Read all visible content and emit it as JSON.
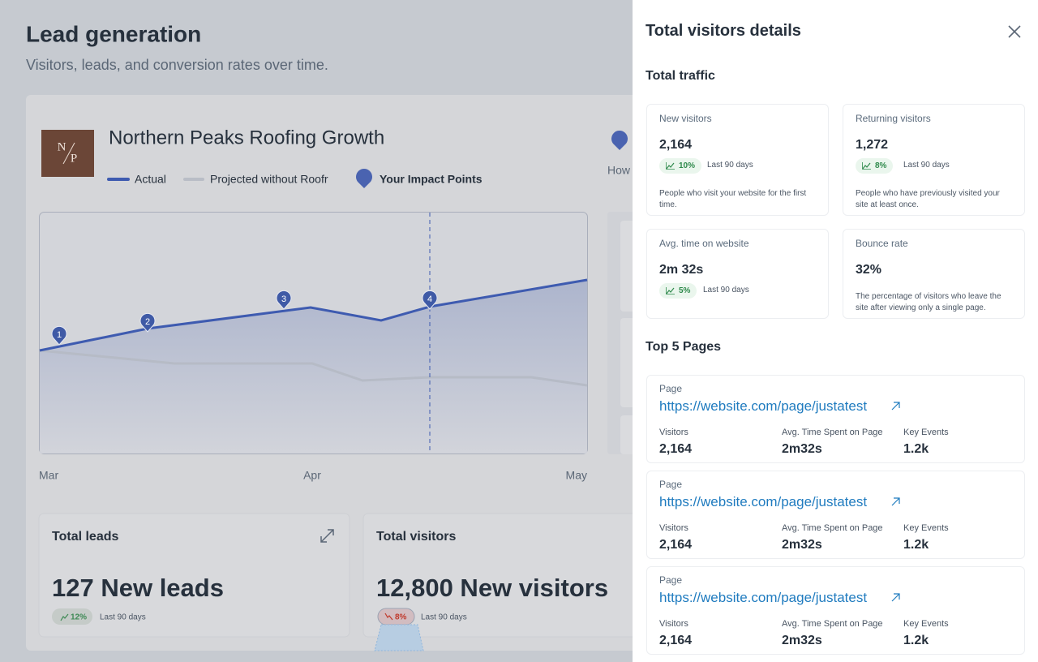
{
  "header": {
    "title": "Lead generation",
    "subtitle": "Visitors, leads, and conversion rates over time."
  },
  "chart": {
    "logo": [
      "N",
      "P"
    ],
    "title": "Northern Peaks Roofing Growth",
    "legend": [
      "Actual",
      "Projected without Roofr",
      "Your Impact Points"
    ],
    "impact_points": [
      "1",
      "2",
      "3",
      "4"
    ],
    "x_labels": [
      "Mar",
      "Apr",
      "May"
    ],
    "side_label": "How"
  },
  "summary": [
    {
      "title": "Total leads",
      "value": "127 New leads",
      "change": "12%",
      "period": "Last 90 days"
    },
    {
      "title": "Total visitors",
      "value": "12,800 New visitors",
      "change": "8%",
      "period": "Last 90 days"
    }
  ],
  "panel": {
    "title": "Total visitors details",
    "traffic_heading": "Total traffic",
    "traffic": [
      {
        "label": "New visitors",
        "value": "2,164",
        "change": "10%",
        "period": "Last 90 days",
        "description": "People who visit your website for the first time."
      },
      {
        "label": "Returning visitors",
        "value": "1,272",
        "change": "8%",
        "period": "Last 90 days",
        "description": "People who have previously visited your site at least once."
      },
      {
        "label": "Avg. time on website",
        "value": "2m 32s",
        "change": "5%",
        "period": "Last 90 days"
      },
      {
        "label": "Bounce rate",
        "value": "32%",
        "description": "The percentage of visitors who leave the site after viewing only a single page."
      }
    ],
    "pages_heading": "Top 5 Pages",
    "pages": [
      {
        "heading": "Page",
        "url": "https://website.com/page/justatest",
        "columns": [
          {
            "label": "Visitors",
            "value": "2,164"
          },
          {
            "label": "Avg. Time Spent on Page",
            "value": "2m32s"
          },
          {
            "label": "Key Events",
            "value": "1.2k"
          }
        ]
      },
      {
        "heading": "Page",
        "url": "https://website.com/page/justatest",
        "columns": [
          {
            "label": "Visitors",
            "value": "2,164"
          },
          {
            "label": "Avg. Time Spent on Page",
            "value": "2m32s"
          },
          {
            "label": "Key Events",
            "value": "1.2k"
          }
        ]
      },
      {
        "heading": "Page",
        "url": "https://website.com/page/justatest",
        "columns": [
          {
            "label": "Visitors",
            "value": "2,164"
          },
          {
            "label": "Avg. Time Spent on Page",
            "value": "2m32s"
          },
          {
            "label": "Key Events",
            "value": "1.2k"
          }
        ]
      }
    ]
  }
}
